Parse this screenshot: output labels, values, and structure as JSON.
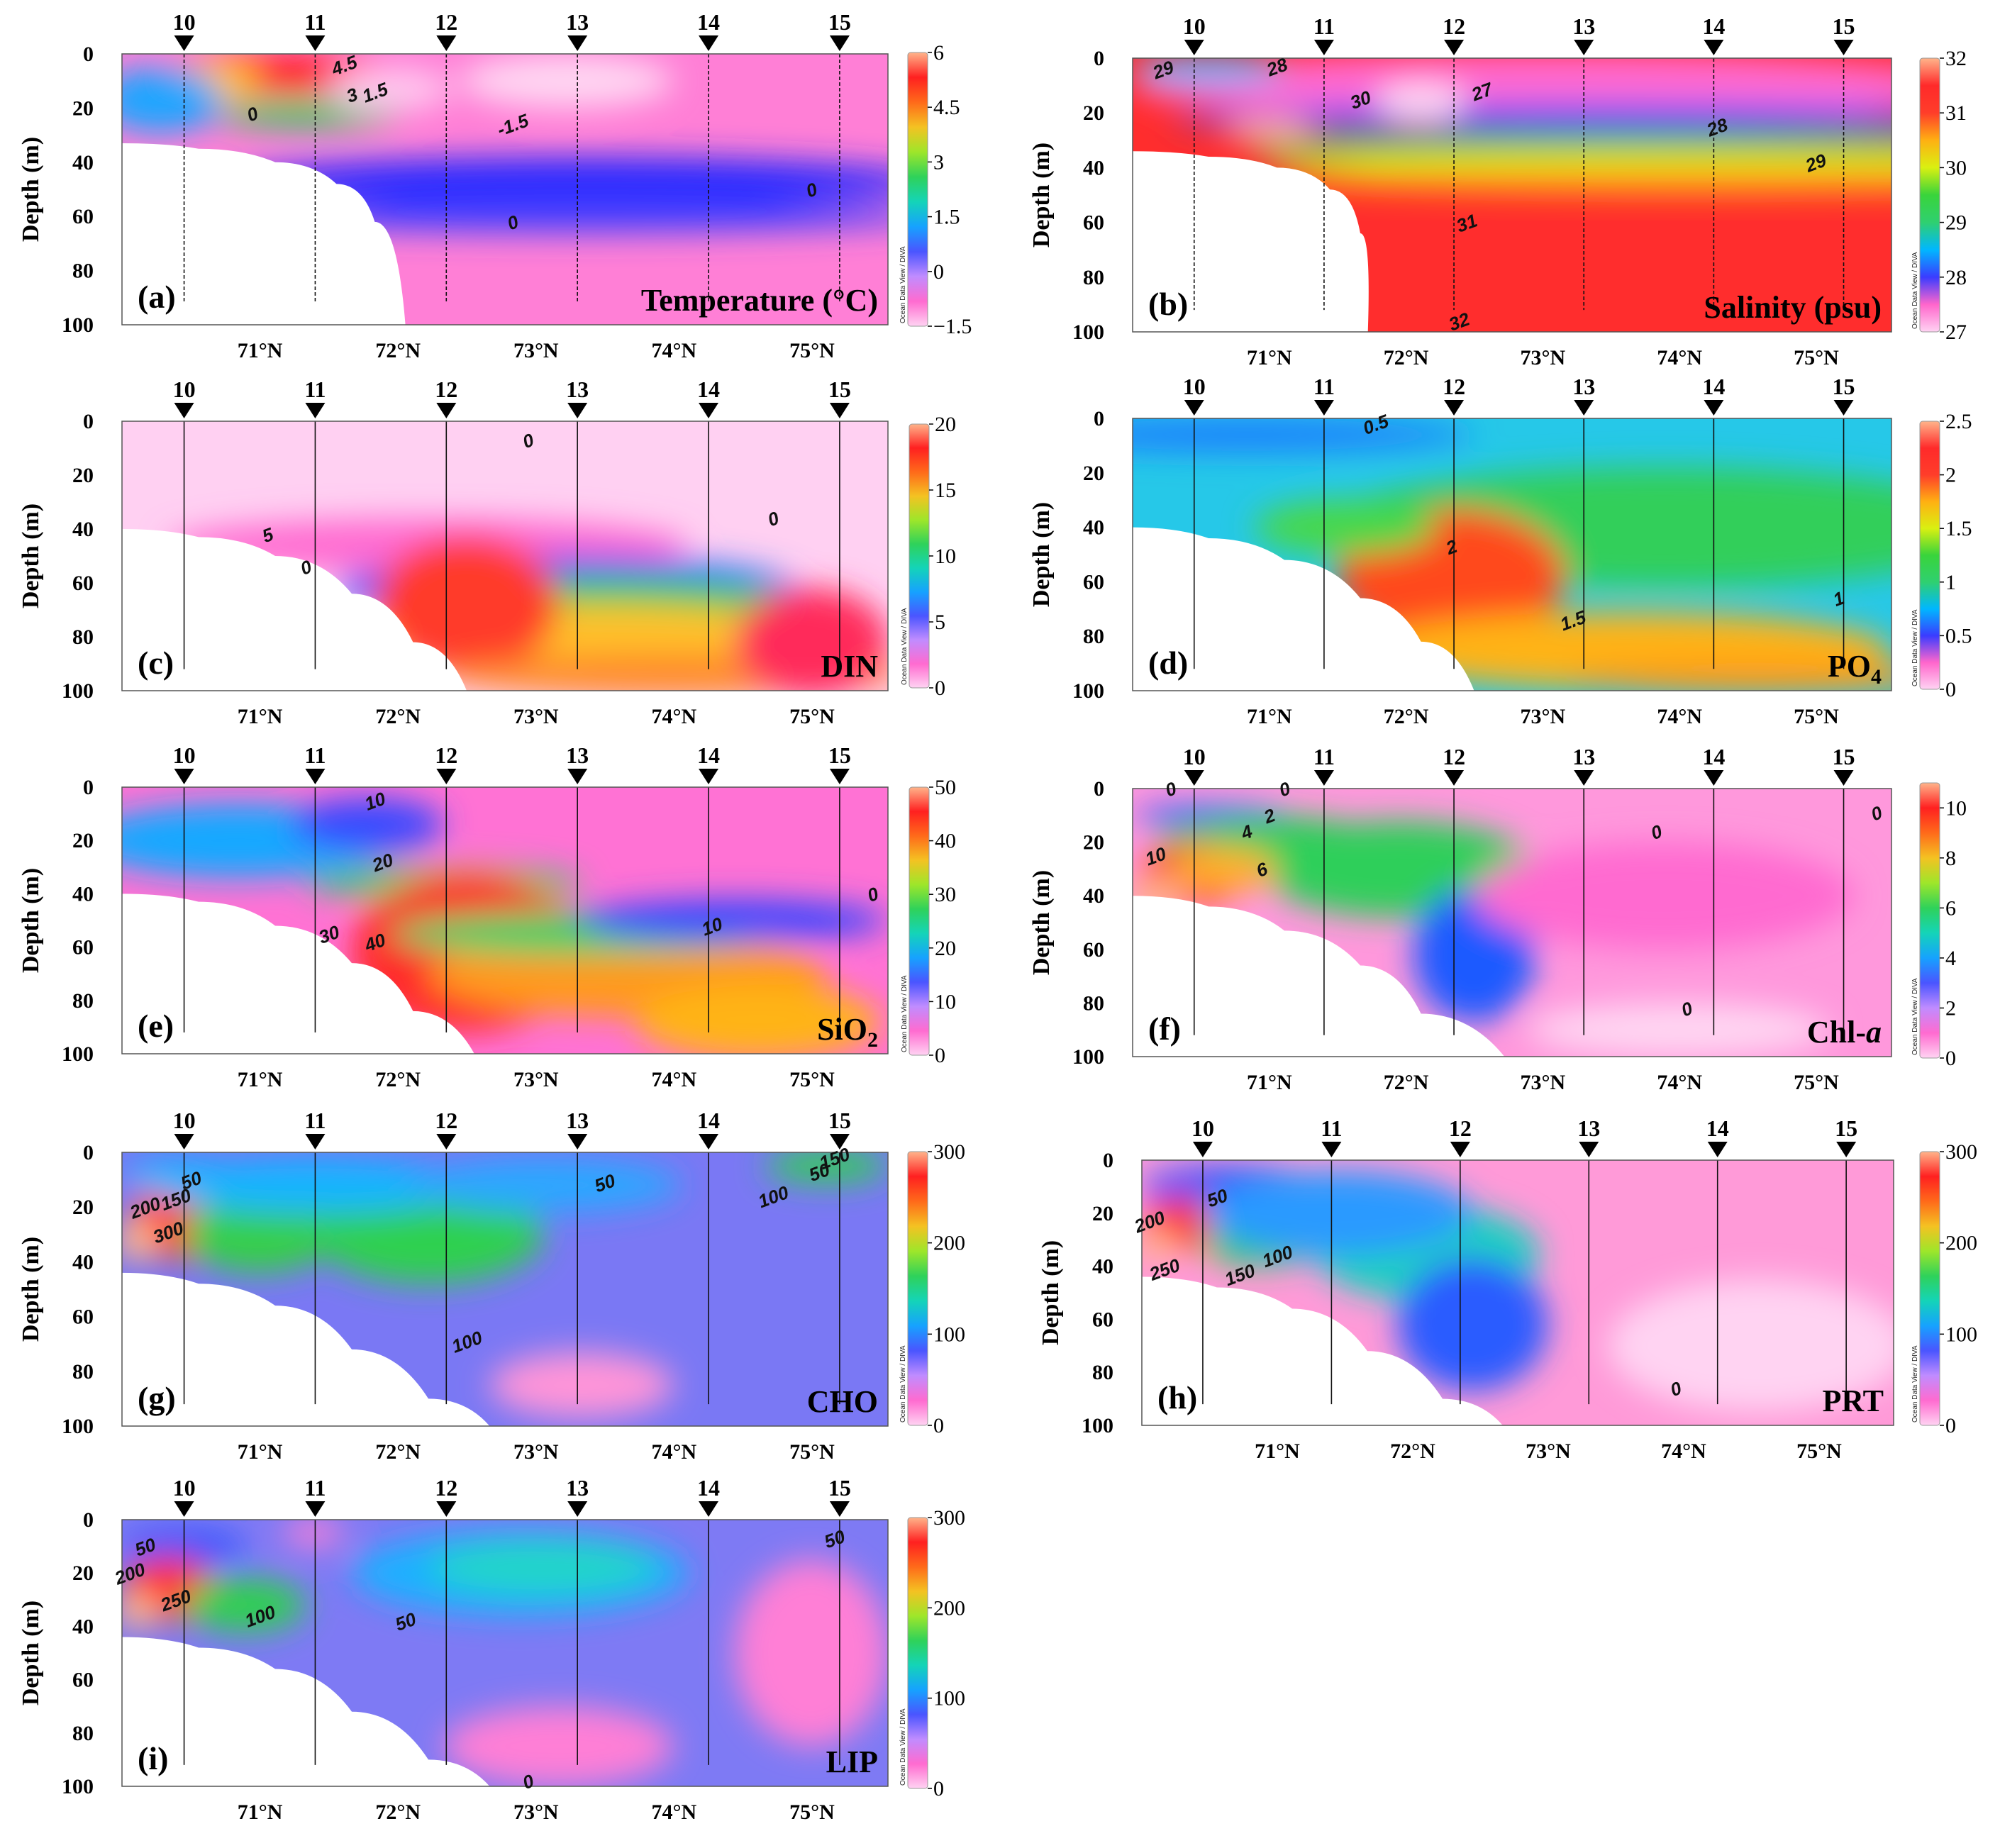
{
  "figure": {
    "depth_axis_title": "Depth (m)",
    "depth_ticks": [
      "0",
      "20",
      "40",
      "60",
      "80",
      "100"
    ],
    "latitude_ticks": [
      "71°N",
      "72°N",
      "73°N",
      "74°N",
      "75°N"
    ],
    "odv_credit": "Ocean Data View / DIVA"
  },
  "chart_data": [
    {
      "type": "heatmap",
      "panel": "(a)",
      "variable": "Temperature (°C)",
      "stations": [
        {
          "name": "10",
          "lat": 70.45
        },
        {
          "name": "11",
          "lat": 71.4
        },
        {
          "name": "12",
          "lat": 72.35
        },
        {
          "name": "13",
          "lat": 73.3
        },
        {
          "name": "14",
          "lat": 74.25
        },
        {
          "name": "15",
          "lat": 75.2
        }
      ],
      "ylim": [
        100,
        0
      ],
      "xlim": [
        70.0,
        75.55
      ],
      "colorbar_ticks": [
        "6",
        "4.5",
        "3",
        "1.5",
        "0",
        "−1.5"
      ],
      "colorbar_range": [
        -1.5,
        6
      ],
      "contour_labels": [
        "4.5",
        "3",
        "1.5",
        "0",
        "-1.5",
        "0",
        "0"
      ],
      "features": [
        "warm core ~6 °C at 71°N near surface",
        "cold layer ~ -1.5 °C at 40–60 m north of 72°N",
        "seafloor bathymetry rises toward 71°N"
      ]
    },
    {
      "type": "heatmap",
      "panel": "(b)",
      "variable": "Salinity (psu)",
      "stations": [
        {
          "name": "10",
          "lat": 70.45
        },
        {
          "name": "11",
          "lat": 71.4
        },
        {
          "name": "12",
          "lat": 72.35
        },
        {
          "name": "13",
          "lat": 73.3
        },
        {
          "name": "14",
          "lat": 74.25
        },
        {
          "name": "15",
          "lat": 75.2
        }
      ],
      "ylim": [
        100,
        0
      ],
      "xlim": [
        70.0,
        75.55
      ],
      "colorbar_ticks": [
        "32",
        "31",
        "30",
        "29",
        "28",
        "27"
      ],
      "colorbar_range": [
        27,
        32
      ],
      "contour_labels": [
        "28",
        "29",
        "30",
        "27",
        "28",
        "29",
        "31",
        "32"
      ]
    },
    {
      "type": "heatmap",
      "panel": "(c)",
      "variable": "DIN",
      "stations": [
        {
          "name": "10",
          "lat": 70.45
        },
        {
          "name": "11",
          "lat": 71.4
        },
        {
          "name": "12",
          "lat": 72.35
        },
        {
          "name": "13",
          "lat": 73.3
        },
        {
          "name": "14",
          "lat": 74.25
        },
        {
          "name": "15",
          "lat": 75.2
        }
      ],
      "ylim": [
        100,
        0
      ],
      "xlim": [
        70.0,
        75.55
      ],
      "colorbar_ticks": [
        "20",
        "15",
        "10",
        "5",
        "0"
      ],
      "colorbar_range": [
        0,
        20
      ],
      "contour_labels": [
        "0",
        "0",
        "5",
        "0"
      ]
    },
    {
      "type": "heatmap",
      "panel": "(d)",
      "variable": "PO4",
      "stations": [
        {
          "name": "10",
          "lat": 70.45
        },
        {
          "name": "11",
          "lat": 71.4
        },
        {
          "name": "12",
          "lat": 72.35
        },
        {
          "name": "13",
          "lat": 73.3
        },
        {
          "name": "14",
          "lat": 74.25
        },
        {
          "name": "15",
          "lat": 75.2
        }
      ],
      "ylim": [
        100,
        0
      ],
      "xlim": [
        70.0,
        75.55
      ],
      "colorbar_ticks": [
        "2.5",
        "2",
        "1.5",
        "1",
        "0.5",
        "0"
      ],
      "colorbar_range": [
        0,
        2.5
      ],
      "contour_labels": [
        "0.5",
        "2",
        "1.5",
        "1"
      ]
    },
    {
      "type": "heatmap",
      "panel": "(e)",
      "variable": "SiO2",
      "stations": [
        {
          "name": "10",
          "lat": 70.45
        },
        {
          "name": "11",
          "lat": 71.4
        },
        {
          "name": "12",
          "lat": 72.35
        },
        {
          "name": "13",
          "lat": 73.3
        },
        {
          "name": "14",
          "lat": 74.25
        },
        {
          "name": "15",
          "lat": 75.2
        }
      ],
      "ylim": [
        100,
        0
      ],
      "xlim": [
        70.0,
        75.55
      ],
      "colorbar_ticks": [
        "50",
        "40",
        "30",
        "20",
        "10",
        "0"
      ],
      "colorbar_range": [
        0,
        50
      ],
      "contour_labels": [
        "10",
        "20",
        "30",
        "40",
        "10",
        "0"
      ]
    },
    {
      "type": "heatmap",
      "panel": "(f)",
      "variable": "Chl-a",
      "stations": [
        {
          "name": "10",
          "lat": 70.45
        },
        {
          "name": "11",
          "lat": 71.4
        },
        {
          "name": "12",
          "lat": 72.35
        },
        {
          "name": "13",
          "lat": 73.3
        },
        {
          "name": "14",
          "lat": 74.25
        },
        {
          "name": "15",
          "lat": 75.2
        }
      ],
      "ylim": [
        100,
        0
      ],
      "xlim": [
        70.0,
        75.55
      ],
      "colorbar_ticks": [
        "10",
        "8",
        "6",
        "4",
        "2",
        "0"
      ],
      "colorbar_range": [
        0,
        11
      ],
      "contour_labels": [
        "0",
        "0",
        "2",
        "4",
        "10",
        "6",
        "0",
        "0",
        "0"
      ]
    },
    {
      "type": "heatmap",
      "panel": "(g)",
      "variable": "CHO",
      "stations": [
        {
          "name": "10",
          "lat": 70.45
        },
        {
          "name": "11",
          "lat": 71.4
        },
        {
          "name": "12",
          "lat": 72.35
        },
        {
          "name": "13",
          "lat": 73.3
        },
        {
          "name": "14",
          "lat": 74.25
        },
        {
          "name": "15",
          "lat": 75.2
        }
      ],
      "ylim": [
        100,
        0
      ],
      "xlim": [
        70.0,
        75.55
      ],
      "colorbar_ticks": [
        "300",
        "200",
        "100",
        "0"
      ],
      "colorbar_range": [
        0,
        300
      ],
      "contour_labels": [
        "50",
        "150",
        "200",
        "300",
        "50",
        "100",
        "150",
        "50",
        "100"
      ]
    },
    {
      "type": "heatmap",
      "panel": "(h)",
      "variable": "PRT",
      "stations": [
        {
          "name": "10",
          "lat": 70.45
        },
        {
          "name": "11",
          "lat": 71.4
        },
        {
          "name": "12",
          "lat": 72.35
        },
        {
          "name": "13",
          "lat": 73.3
        },
        {
          "name": "14",
          "lat": 74.25
        },
        {
          "name": "15",
          "lat": 75.2
        }
      ],
      "ylim": [
        100,
        0
      ],
      "xlim": [
        70.0,
        75.55
      ],
      "colorbar_ticks": [
        "300",
        "200",
        "100",
        "0"
      ],
      "colorbar_range": [
        0,
        300
      ],
      "contour_labels": [
        "50",
        "200",
        "250",
        "150",
        "100",
        "0"
      ]
    },
    {
      "type": "heatmap",
      "panel": "(i)",
      "variable": "LIP",
      "stations": [
        {
          "name": "10",
          "lat": 70.45
        },
        {
          "name": "11",
          "lat": 71.4
        },
        {
          "name": "12",
          "lat": 72.35
        },
        {
          "name": "13",
          "lat": 73.3
        },
        {
          "name": "14",
          "lat": 74.25
        },
        {
          "name": "15",
          "lat": 75.2
        }
      ],
      "ylim": [
        100,
        0
      ],
      "xlim": [
        70.0,
        75.55
      ],
      "colorbar_ticks": [
        "300",
        "200",
        "100",
        "0"
      ],
      "colorbar_range": [
        0,
        300
      ],
      "contour_labels": [
        "50",
        "200",
        "250",
        "100",
        "50",
        "50",
        "0"
      ]
    }
  ]
}
